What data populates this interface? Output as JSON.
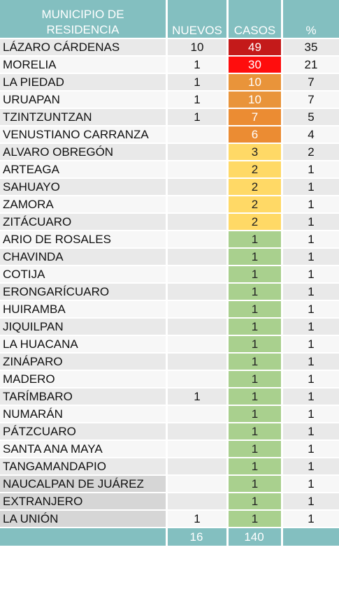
{
  "headers": {
    "municipio_line1": "MUNICIPIO DE",
    "municipio_line2": "RESIDENCIA",
    "nuevos": "NUEVOS",
    "casos": "CASOS",
    "pct": "%"
  },
  "rows": [
    {
      "municipio": "LÁZARO CÁRDENAS",
      "nuevos": "10",
      "casos": "49",
      "pct": "35",
      "level": "red-dark",
      "name_bg": "normal"
    },
    {
      "municipio": "MORELIA",
      "nuevos": "1",
      "casos": "30",
      "pct": "21",
      "level": "red",
      "name_bg": "normal"
    },
    {
      "municipio": "LA PIEDAD",
      "nuevos": "1",
      "casos": "10",
      "pct": "7",
      "level": "orange",
      "name_bg": "normal"
    },
    {
      "municipio": "URUAPAN",
      "nuevos": "1",
      "casos": "10",
      "pct": "7",
      "level": "orange",
      "name_bg": "normal"
    },
    {
      "municipio": "TZINTZUNTZAN",
      "nuevos": "1",
      "casos": "7",
      "pct": "5",
      "level": "orange2",
      "name_bg": "normal"
    },
    {
      "municipio": "VENUSTIANO CARRANZA",
      "nuevos": "",
      "casos": "6",
      "pct": "4",
      "level": "orange2",
      "name_bg": "normal"
    },
    {
      "municipio": "ALVARO OBREGÓN",
      "nuevos": "",
      "casos": "3",
      "pct": "2",
      "level": "yellow",
      "name_bg": "normal"
    },
    {
      "municipio": "ARTEAGA",
      "nuevos": "",
      "casos": "2",
      "pct": "1",
      "level": "yellow",
      "name_bg": "normal"
    },
    {
      "municipio": "SAHUAYO",
      "nuevos": "",
      "casos": "2",
      "pct": "1",
      "level": "yellow",
      "name_bg": "normal"
    },
    {
      "municipio": "ZAMORA",
      "nuevos": "",
      "casos": "2",
      "pct": "1",
      "level": "yellow",
      "name_bg": "normal"
    },
    {
      "municipio": "ZITÁCUARO",
      "nuevos": "",
      "casos": "2",
      "pct": "1",
      "level": "yellow",
      "name_bg": "normal"
    },
    {
      "municipio": "ARIO DE ROSALES",
      "nuevos": "",
      "casos": "1",
      "pct": "1",
      "level": "green",
      "name_bg": "normal"
    },
    {
      "municipio": "CHAVINDA",
      "nuevos": "",
      "casos": "1",
      "pct": "1",
      "level": "green",
      "name_bg": "normal"
    },
    {
      "municipio": "COTIJA",
      "nuevos": "",
      "casos": "1",
      "pct": "1",
      "level": "green",
      "name_bg": "normal"
    },
    {
      "municipio": "ERONGARÍCUARO",
      "nuevos": "",
      "casos": "1",
      "pct": "1",
      "level": "green",
      "name_bg": "normal"
    },
    {
      "municipio": "HUIRAMBA",
      "nuevos": "",
      "casos": "1",
      "pct": "1",
      "level": "green",
      "name_bg": "normal"
    },
    {
      "municipio": "JIQUILPAN",
      "nuevos": "",
      "casos": "1",
      "pct": "1",
      "level": "green",
      "name_bg": "normal"
    },
    {
      "municipio": "LA HUACANA",
      "nuevos": "",
      "casos": "1",
      "pct": "1",
      "level": "green",
      "name_bg": "normal"
    },
    {
      "municipio": "ZINÁPARO",
      "nuevos": "",
      "casos": "1",
      "pct": "1",
      "level": "green",
      "name_bg": "normal"
    },
    {
      "municipio": "MADERO",
      "nuevos": "",
      "casos": "1",
      "pct": "1",
      "level": "green",
      "name_bg": "normal"
    },
    {
      "municipio": "TARÍMBARO",
      "nuevos": "1",
      "casos": "1",
      "pct": "1",
      "level": "green",
      "name_bg": "normal"
    },
    {
      "municipio": "NUMARÁN",
      "nuevos": "",
      "casos": "1",
      "pct": "1",
      "level": "green",
      "name_bg": "normal"
    },
    {
      "municipio": "PÁTZCUARO",
      "nuevos": "",
      "casos": "1",
      "pct": "1",
      "level": "green",
      "name_bg": "normal"
    },
    {
      "municipio": "SANTA ANA MAYA",
      "nuevos": "",
      "casos": "1",
      "pct": "1",
      "level": "green",
      "name_bg": "normal"
    },
    {
      "municipio": "TANGAMANDAPIO",
      "nuevos": "",
      "casos": "1",
      "pct": "1",
      "level": "green",
      "name_bg": "normal"
    },
    {
      "municipio": "NAUCALPAN DE JUÁREZ",
      "nuevos": "",
      "casos": "1",
      "pct": "1",
      "level": "green",
      "name_bg": "grey"
    },
    {
      "municipio": "EXTRANJERO",
      "nuevos": "",
      "casos": "1",
      "pct": "1",
      "level": "green",
      "name_bg": "grey"
    },
    {
      "municipio": "LA UNIÓN",
      "nuevos": "1",
      "casos": "1",
      "pct": "1",
      "level": "green",
      "name_bg": "grey"
    }
  ],
  "totals": {
    "nuevos": "16",
    "casos": "140"
  },
  "colors": {
    "header": "#83bfc0",
    "red-dark": "#c41a1a",
    "red": "#ff0d0d",
    "orange": "#e9943a",
    "yellow": "#ffd966",
    "green": "#a9d08e"
  }
}
